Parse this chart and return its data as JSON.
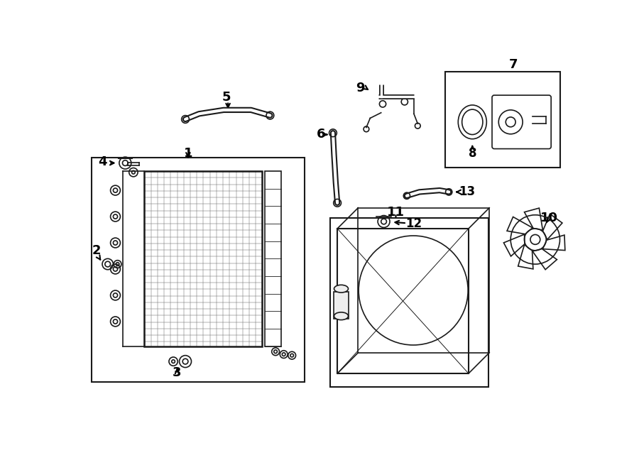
{
  "bg_color": "#ffffff",
  "line_color": "#1a1a1a",
  "fig_width": 9.0,
  "fig_height": 6.62
}
